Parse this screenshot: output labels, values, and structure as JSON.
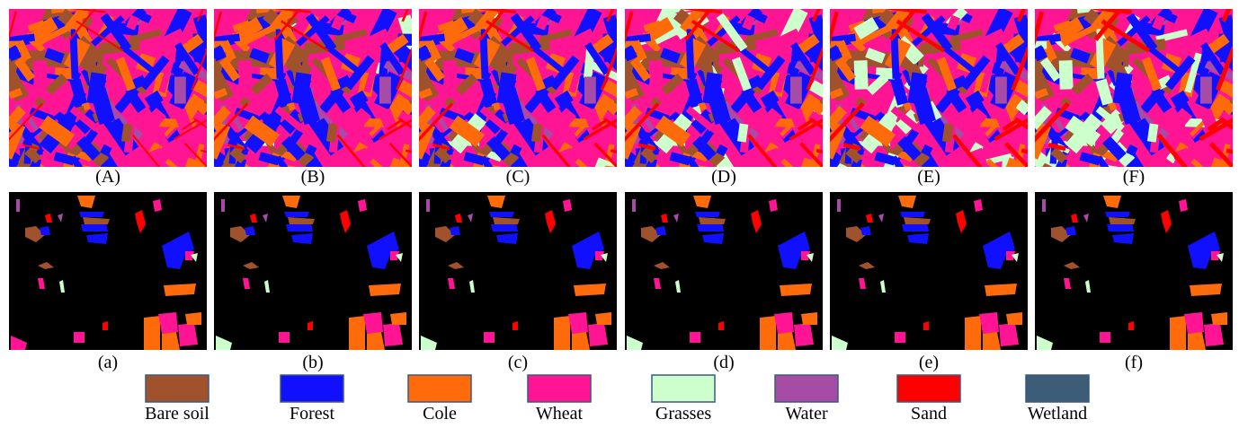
{
  "panels_top": [
    "(A)",
    "(B)",
    "(C)",
    "(D)",
    "(E)",
    "(F)"
  ],
  "panels_bottom": [
    "(a)",
    "(b)",
    "(c)",
    "(d)",
    "(e)",
    "(f)"
  ],
  "legend": [
    {
      "name": "Bare soil",
      "color": "#a0522d"
    },
    {
      "name": "Forest",
      "color": "#1010ff"
    },
    {
      "name": "Cole",
      "color": "#ff6a0a"
    },
    {
      "name": "Wheat",
      "color": "#ff1493"
    },
    {
      "name": "Grasses",
      "color": "#ccffcc"
    },
    {
      "name": "Water",
      "color": "#a64ca6"
    },
    {
      "name": "Sand",
      "color": "#ff0000"
    },
    {
      "name": "Wetland",
      "color": "#3d5c78"
    }
  ]
}
